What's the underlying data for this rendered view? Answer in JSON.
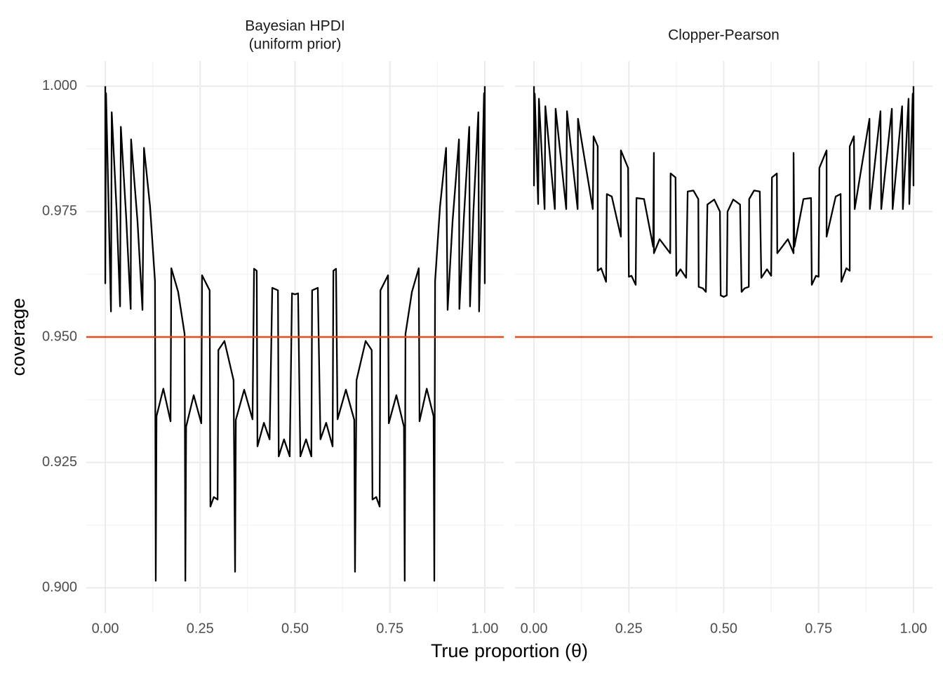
{
  "axis_labels": {
    "x": "True proportion (θ)",
    "y": "coverage"
  },
  "chart_data": [
    {
      "type": "line",
      "title": [
        "Bayesian HPDI",
        "(uniform prior)"
      ],
      "color": "#000000",
      "xlim": [
        -0.05,
        1.05
      ],
      "ylim": [
        0.895,
        1.005
      ],
      "xticks": [
        {
          "value": 0,
          "label": "0.00"
        },
        {
          "value": 0.25,
          "label": "0.25"
        },
        {
          "value": 0.5,
          "label": "0.50"
        },
        {
          "value": 0.75,
          "label": "0.75"
        },
        {
          "value": 1,
          "label": "1.00"
        }
      ],
      "yticks": [
        {
          "value": 0.9,
          "label": "0.900"
        },
        {
          "value": 0.925,
          "label": "0.925"
        },
        {
          "value": 0.95,
          "label": "0.950"
        },
        {
          "value": 0.975,
          "label": "0.975"
        },
        {
          "value": 1,
          "label": "1.000"
        }
      ],
      "x_minor_ticks": [
        0.125,
        0.375,
        0.625,
        0.875
      ],
      "y_minor_ticks": [
        0.9125,
        0.9375,
        0.9625,
        0.9875
      ],
      "grid": true,
      "hline": 0.95,
      "hline_color": "#e8491d",
      "x": [
        0,
        0,
        0.002,
        0.015,
        0.017,
        0.03,
        0.039,
        0.041,
        0.055,
        0.067,
        0.068,
        0.085,
        0.098,
        0.102,
        0.118,
        0.131,
        0.133,
        0.135,
        0.153,
        0.172,
        0.174,
        0.192,
        0.209,
        0.211,
        0.213,
        0.233,
        0.253,
        0.255,
        0.275,
        0.277,
        0.286,
        0.296,
        0.298,
        0.314,
        0.338,
        0.342,
        0.344,
        0.366,
        0.388,
        0.392,
        0.399,
        0.401,
        0.418,
        0.433,
        0.44,
        0.455,
        0.457,
        0.471,
        0.486,
        0.492,
        0.5,
        0.508,
        0.514,
        0.529,
        0.543,
        0.545,
        0.56,
        0.567,
        0.582,
        0.599,
        0.601,
        0.608,
        0.612,
        0.634,
        0.656,
        0.658,
        0.662,
        0.686,
        0.702,
        0.704,
        0.714,
        0.723,
        0.725,
        0.745,
        0.747,
        0.767,
        0.787,
        0.789,
        0.791,
        0.808,
        0.826,
        0.828,
        0.847,
        0.865,
        0.867,
        0.869,
        0.882,
        0.898,
        0.902,
        0.915,
        0.932,
        0.933,
        0.945,
        0.959,
        0.961,
        0.97,
        0.983,
        0.985,
        0.998,
        1,
        1
      ],
      "values": [
        1.0,
        0.9607,
        0.9986,
        0.9551,
        0.9948,
        0.975,
        0.9561,
        0.9919,
        0.974,
        0.9556,
        0.9894,
        0.973,
        0.9554,
        0.9877,
        0.976,
        0.9611,
        0.9014,
        0.9342,
        0.9397,
        0.9332,
        0.9637,
        0.959,
        0.9506,
        0.9014,
        0.9321,
        0.9384,
        0.9328,
        0.9623,
        0.9593,
        0.9162,
        0.9181,
        0.9176,
        0.9474,
        0.9492,
        0.9414,
        0.9032,
        0.9335,
        0.9395,
        0.9336,
        0.9636,
        0.9632,
        0.9282,
        0.9329,
        0.9296,
        0.9598,
        0.9593,
        0.9262,
        0.9296,
        0.9262,
        0.9587,
        0.9585,
        0.9587,
        0.9262,
        0.9296,
        0.9262,
        0.9593,
        0.9598,
        0.9296,
        0.9329,
        0.9282,
        0.9632,
        0.9636,
        0.9336,
        0.9395,
        0.9335,
        0.9032,
        0.9414,
        0.9492,
        0.9474,
        0.9176,
        0.9181,
        0.9162,
        0.9593,
        0.9623,
        0.9328,
        0.9384,
        0.9321,
        0.9014,
        0.9506,
        0.959,
        0.9637,
        0.9332,
        0.9397,
        0.9342,
        0.9014,
        0.9611,
        0.976,
        0.9877,
        0.9554,
        0.973,
        0.9894,
        0.9556,
        0.974,
        0.9919,
        0.9561,
        0.975,
        0.9948,
        0.9551,
        0.9986,
        0.9607,
        1.0
      ]
    },
    {
      "type": "line",
      "title": "Clopper-Pearson",
      "color": "#000000",
      "xlim": [
        -0.05,
        1.05
      ],
      "ylim": [
        0.895,
        1.005
      ],
      "xticks": [
        {
          "value": 0,
          "label": "0.00"
        },
        {
          "value": 0.25,
          "label": "0.25"
        },
        {
          "value": 0.5,
          "label": "0.50"
        },
        {
          "value": 0.75,
          "label": "0.75"
        },
        {
          "value": 1,
          "label": "1.00"
        }
      ],
      "yticks": [
        0.9,
        0.925,
        0.95,
        0.975,
        1
      ],
      "x_minor_ticks": [
        0.125,
        0.375,
        0.625,
        0.875
      ],
      "y_minor_ticks": [
        0.9125,
        0.9375,
        0.9625,
        0.9875
      ],
      "grid": true,
      "hline": 0.95,
      "hline_color": "#e8491d",
      "x": [
        0,
        0,
        0.002,
        0.011,
        0.013,
        0.028,
        0.03,
        0.055,
        0.057,
        0.085,
        0.087,
        0.115,
        0.116,
        0.155,
        0.157,
        0.168,
        0.168,
        0.177,
        0.19,
        0.192,
        0.205,
        0.229,
        0.229,
        0.248,
        0.25,
        0.257,
        0.268,
        0.27,
        0.29,
        0.314,
        0.316,
        0.316,
        0.331,
        0.359,
        0.36,
        0.373,
        0.375,
        0.386,
        0.401,
        0.405,
        0.42,
        0.433,
        0.434,
        0.445,
        0.453,
        0.457,
        0.475,
        0.49,
        0.492,
        0.5,
        0.508,
        0.51,
        0.525,
        0.543,
        0.547,
        0.555,
        0.566,
        0.567,
        0.58,
        0.595,
        0.599,
        0.614,
        0.625,
        0.627,
        0.64,
        0.641,
        0.669,
        0.684,
        0.684,
        0.686,
        0.71,
        0.73,
        0.732,
        0.743,
        0.75,
        0.752,
        0.771,
        0.771,
        0.795,
        0.808,
        0.81,
        0.823,
        0.832,
        0.832,
        0.843,
        0.845,
        0.884,
        0.885,
        0.913,
        0.915,
        0.943,
        0.945,
        0.97,
        0.972,
        0.987,
        0.989,
        0.998,
        1,
        1
      ],
      "values": [
        1.0,
        0.9802,
        0.9985,
        0.9765,
        0.9975,
        0.9755,
        0.996,
        0.9755,
        0.9955,
        0.9755,
        0.995,
        0.9755,
        0.9935,
        0.9755,
        0.99,
        0.988,
        0.9632,
        0.9637,
        0.961,
        0.9785,
        0.978,
        0.97,
        0.9872,
        0.9837,
        0.962,
        0.9622,
        0.9604,
        0.9777,
        0.9775,
        0.968,
        0.9867,
        0.9667,
        0.9695,
        0.9667,
        0.9826,
        0.9818,
        0.9622,
        0.9635,
        0.9618,
        0.979,
        0.9792,
        0.9775,
        0.96,
        0.9597,
        0.959,
        0.9764,
        0.9774,
        0.975,
        0.9583,
        0.958,
        0.9583,
        0.975,
        0.9774,
        0.9764,
        0.959,
        0.9597,
        0.96,
        0.9775,
        0.9792,
        0.979,
        0.9618,
        0.9635,
        0.9622,
        0.9818,
        0.9826,
        0.9667,
        0.9695,
        0.9667,
        0.9867,
        0.968,
        0.9775,
        0.9777,
        0.9604,
        0.9622,
        0.962,
        0.9837,
        0.9872,
        0.97,
        0.978,
        0.9785,
        0.961,
        0.9637,
        0.9632,
        0.988,
        0.99,
        0.9755,
        0.9935,
        0.9755,
        0.995,
        0.9755,
        0.9955,
        0.9755,
        0.996,
        0.9755,
        0.9975,
        0.9765,
        0.9985,
        0.9802,
        1.0
      ]
    }
  ]
}
